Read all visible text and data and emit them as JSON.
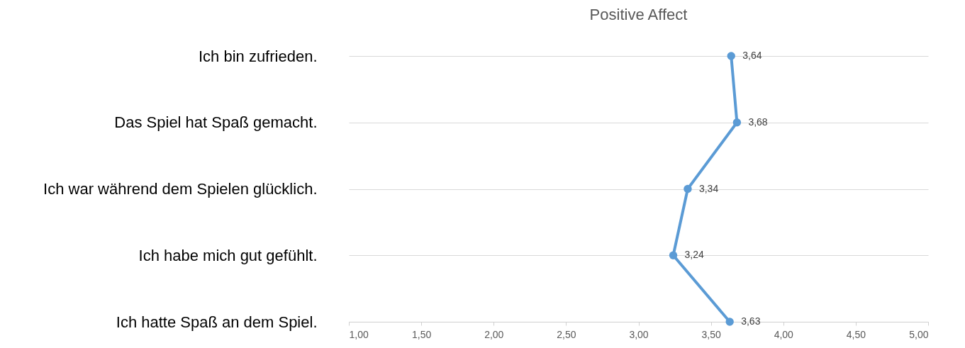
{
  "chart_data": {
    "type": "line",
    "orientation": "horizontal",
    "title": "Positive Affect",
    "categories": [
      "Ich bin zufrieden.",
      "Das Spiel hat Spaß gemacht.",
      "Ich war während dem Spielen glücklich.",
      "Ich habe mich gut gefühlt.",
      "Ich hatte Spaß an dem Spiel."
    ],
    "series": [
      {
        "color": "#5b9bd5",
        "values": [
          3.64,
          3.68,
          3.34,
          3.24,
          3.63
        ],
        "value_labels": [
          "3,64",
          "3,68",
          "3,34",
          "3,24",
          "3,63"
        ]
      }
    ],
    "xlim": [
      1,
      5
    ],
    "xticks": [
      {
        "value": 1,
        "label": "1,00"
      },
      {
        "value": 1.5,
        "label": "1,50"
      },
      {
        "value": 2,
        "label": "2,00"
      },
      {
        "value": 2.5,
        "label": "2,50"
      },
      {
        "value": 3,
        "label": "3,00"
      },
      {
        "value": 3.5,
        "label": "3,50"
      },
      {
        "value": 4,
        "label": "4,00"
      },
      {
        "value": 4.5,
        "label": "4,50"
      },
      {
        "value": 5,
        "label": "5,00"
      }
    ],
    "grid": "y",
    "marker": "circle",
    "legend": false
  }
}
